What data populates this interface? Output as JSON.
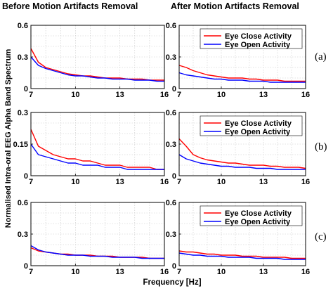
{
  "figure": {
    "col_titles": [
      "Before Motion Artifacts Removal",
      "After Motion Artifacts Removal"
    ],
    "row_labels": [
      "(a)",
      "(b)",
      "(c)"
    ],
    "ylabel": "Normalised Intra-oral EEG Alpha Band Spectrum",
    "xlabel": "Frequency [Hz]"
  },
  "colors": {
    "close": "#ff0000",
    "open": "#0000ff"
  },
  "chart_data": [
    {
      "type": "line",
      "row": "(a)",
      "panel": "Before Motion Artifacts Removal",
      "xlim": [
        7,
        16
      ],
      "ylim": [
        0,
        0.6
      ],
      "xticks": [
        7,
        10,
        13,
        16
      ],
      "yticks": [
        0,
        0.3,
        0.6
      ],
      "grid": true,
      "x": [
        7,
        7.5,
        8,
        8.5,
        9,
        9.5,
        10,
        10.5,
        11,
        11.5,
        12,
        12.5,
        13,
        13.5,
        14,
        14.5,
        15,
        15.5,
        16
      ],
      "series": [
        {
          "name": "Eye Close Activity",
          "values": [
            0.38,
            0.25,
            0.2,
            0.18,
            0.16,
            0.14,
            0.13,
            0.12,
            0.12,
            0.11,
            0.1,
            0.1,
            0.1,
            0.09,
            0.09,
            0.09,
            0.08,
            0.08,
            0.08
          ]
        },
        {
          "name": "Eye Open Activity",
          "values": [
            0.3,
            0.22,
            0.19,
            0.17,
            0.15,
            0.13,
            0.12,
            0.12,
            0.11,
            0.1,
            0.1,
            0.09,
            0.09,
            0.09,
            0.08,
            0.08,
            0.08,
            0.07,
            0.07
          ]
        }
      ]
    },
    {
      "type": "line",
      "row": "(a)",
      "panel": "After Motion Artifacts Removal",
      "xlim": [
        7,
        16
      ],
      "ylim": [
        0,
        0.6
      ],
      "xticks": [
        7,
        10,
        13,
        16
      ],
      "yticks": [
        0,
        0.3,
        0.6
      ],
      "grid": true,
      "legend": "top-right",
      "x": [
        7,
        7.5,
        8,
        8.5,
        9,
        9.5,
        10,
        10.5,
        11,
        11.5,
        12,
        12.5,
        13,
        13.5,
        14,
        14.5,
        15,
        15.5,
        16
      ],
      "series": [
        {
          "name": "Eye Close Activity",
          "values": [
            0.22,
            0.2,
            0.17,
            0.15,
            0.13,
            0.12,
            0.11,
            0.1,
            0.1,
            0.1,
            0.09,
            0.09,
            0.08,
            0.08,
            0.08,
            0.07,
            0.07,
            0.07,
            0.07
          ]
        },
        {
          "name": "Eye Open Activity",
          "values": [
            0.15,
            0.13,
            0.12,
            0.11,
            0.1,
            0.09,
            0.09,
            0.08,
            0.08,
            0.08,
            0.07,
            0.07,
            0.07,
            0.06,
            0.06,
            0.06,
            0.06,
            0.06,
            0.06
          ]
        }
      ]
    },
    {
      "type": "line",
      "row": "(b)",
      "panel": "Before Motion Artifacts Removal",
      "xlim": [
        7,
        16
      ],
      "ylim": [
        0,
        0.3
      ],
      "xticks": [
        7,
        10,
        13,
        16
      ],
      "yticks": [
        0,
        0.15,
        0.3
      ],
      "grid": true,
      "x": [
        7,
        7.5,
        8,
        8.5,
        9,
        9.5,
        10,
        10.5,
        11,
        11.5,
        12,
        12.5,
        13,
        13.5,
        14,
        14.5,
        15,
        15.5,
        16
      ],
      "series": [
        {
          "name": "Eye Close Activity",
          "values": [
            0.22,
            0.14,
            0.12,
            0.1,
            0.09,
            0.08,
            0.08,
            0.07,
            0.07,
            0.06,
            0.05,
            0.05,
            0.05,
            0.04,
            0.04,
            0.04,
            0.04,
            0.03,
            0.03
          ]
        },
        {
          "name": "Eye Open Activity",
          "values": [
            0.15,
            0.1,
            0.09,
            0.08,
            0.07,
            0.06,
            0.06,
            0.05,
            0.05,
            0.05,
            0.04,
            0.04,
            0.04,
            0.03,
            0.03,
            0.03,
            0.03,
            0.03,
            0.03
          ]
        }
      ]
    },
    {
      "type": "line",
      "row": "(b)",
      "panel": "After Motion Artifacts Removal",
      "xlim": [
        7,
        16
      ],
      "ylim": [
        0,
        0.6
      ],
      "xticks": [
        7,
        10,
        13,
        16
      ],
      "yticks": [
        0,
        0.3,
        0.6
      ],
      "grid": true,
      "legend": "top-right",
      "x": [
        7,
        7.5,
        8,
        8.5,
        9,
        9.5,
        10,
        10.5,
        11,
        11.5,
        12,
        12.5,
        13,
        13.5,
        14,
        14.5,
        15,
        15.5,
        16
      ],
      "series": [
        {
          "name": "Eye Close Activity",
          "values": [
            0.35,
            0.28,
            0.2,
            0.17,
            0.15,
            0.14,
            0.13,
            0.12,
            0.12,
            0.11,
            0.1,
            0.1,
            0.1,
            0.09,
            0.09,
            0.08,
            0.08,
            0.08,
            0.07
          ]
        },
        {
          "name": "Eye Open Activity",
          "values": [
            0.2,
            0.16,
            0.14,
            0.12,
            0.11,
            0.1,
            0.09,
            0.09,
            0.08,
            0.08,
            0.08,
            0.07,
            0.07,
            0.07,
            0.06,
            0.06,
            0.06,
            0.06,
            0.06
          ]
        }
      ]
    },
    {
      "type": "line",
      "row": "(c)",
      "panel": "Before Motion Artifacts Removal",
      "xlim": [
        7,
        16
      ],
      "ylim": [
        0,
        0.6
      ],
      "xticks": [
        7,
        10,
        13,
        16
      ],
      "yticks": [
        0,
        0.3,
        0.6
      ],
      "grid": true,
      "x": [
        7,
        7.5,
        8,
        8.5,
        9,
        9.5,
        10,
        10.5,
        11,
        11.5,
        12,
        12.5,
        13,
        13.5,
        14,
        14.5,
        15,
        15.5,
        16
      ],
      "series": [
        {
          "name": "Eye Close Activity",
          "values": [
            0.17,
            0.14,
            0.13,
            0.12,
            0.11,
            0.11,
            0.1,
            0.1,
            0.1,
            0.09,
            0.09,
            0.09,
            0.08,
            0.08,
            0.08,
            0.08,
            0.07,
            0.07,
            0.07
          ]
        },
        {
          "name": "Eye Open Activity",
          "values": [
            0.19,
            0.15,
            0.13,
            0.12,
            0.11,
            0.1,
            0.1,
            0.1,
            0.09,
            0.09,
            0.09,
            0.08,
            0.08,
            0.08,
            0.08,
            0.07,
            0.07,
            0.07,
            0.07
          ]
        }
      ]
    },
    {
      "type": "line",
      "row": "(c)",
      "panel": "After Motion Artifacts Removal",
      "xlim": [
        7,
        16
      ],
      "ylim": [
        0,
        0.6
      ],
      "xticks": [
        7,
        10,
        13,
        16
      ],
      "yticks": [
        0,
        0.3,
        0.6
      ],
      "grid": true,
      "legend": "top-right",
      "x": [
        7,
        7.5,
        8,
        8.5,
        9,
        9.5,
        10,
        10.5,
        11,
        11.5,
        12,
        12.5,
        13,
        13.5,
        14,
        14.5,
        15,
        15.5,
        16
      ],
      "series": [
        {
          "name": "Eye Close Activity",
          "values": [
            0.14,
            0.13,
            0.13,
            0.12,
            0.11,
            0.11,
            0.1,
            0.1,
            0.1,
            0.09,
            0.09,
            0.09,
            0.08,
            0.08,
            0.08,
            0.08,
            0.07,
            0.07,
            0.07
          ]
        },
        {
          "name": "Eye Open Activity",
          "values": [
            0.12,
            0.11,
            0.1,
            0.1,
            0.09,
            0.09,
            0.09,
            0.08,
            0.08,
            0.08,
            0.08,
            0.07,
            0.07,
            0.07,
            0.07,
            0.06,
            0.06,
            0.06,
            0.06
          ]
        }
      ]
    }
  ]
}
